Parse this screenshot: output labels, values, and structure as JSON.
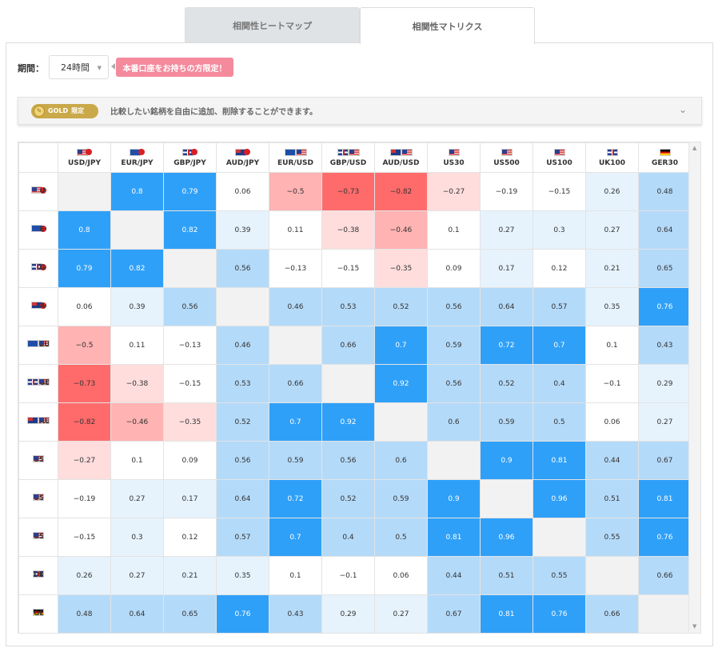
{
  "tabs": [
    {
      "label": "相関性ヒートマップ",
      "active": false
    },
    {
      "label": "相関性マトリクス",
      "active": true
    }
  ],
  "period": {
    "label": "期間：",
    "selected": "24時間"
  },
  "badge": {
    "text": "本番口座をお持ちの方限定！"
  },
  "gold": {
    "pill": "GOLD",
    "limited": "限定",
    "text": "比較したい銘柄を自由に追加、削除することができます。"
  },
  "symbols": [
    {
      "name": "USD/JPY",
      "flags": [
        "us",
        "jp"
      ]
    },
    {
      "name": "EUR/JPY",
      "flags": [
        "eu",
        "jp"
      ]
    },
    {
      "name": "GBP/JPY",
      "flags": [
        "gb",
        "jp"
      ]
    },
    {
      "name": "AUD/JPY",
      "flags": [
        "au",
        "jp"
      ]
    },
    {
      "name": "EUR/USD",
      "flags": [
        "eu",
        "us"
      ]
    },
    {
      "name": "GBP/USD",
      "flags": [
        "gb",
        "us"
      ]
    },
    {
      "name": "AUD/USD",
      "flags": [
        "au",
        "us"
      ]
    },
    {
      "name": "US30",
      "flags": [
        "us"
      ]
    },
    {
      "name": "US500",
      "flags": [
        "us"
      ]
    },
    {
      "name": "US100",
      "flags": [
        "us"
      ]
    },
    {
      "name": "UK100",
      "flags": [
        "gb"
      ]
    },
    {
      "name": "GER30",
      "flags": [
        "de"
      ]
    }
  ],
  "matrix": [
    [
      null,
      0.8,
      0.79,
      0.06,
      -0.5,
      -0.73,
      -0.82,
      -0.27,
      -0.19,
      -0.15,
      0.26,
      0.48
    ],
    [
      0.8,
      null,
      0.82,
      0.39,
      0.11,
      -0.38,
      -0.46,
      0.1,
      0.27,
      0.3,
      0.27,
      0.64
    ],
    [
      0.79,
      0.82,
      null,
      0.56,
      -0.13,
      -0.15,
      -0.35,
      0.09,
      0.17,
      0.12,
      0.21,
      0.65
    ],
    [
      0.06,
      0.39,
      0.56,
      null,
      0.46,
      0.53,
      0.52,
      0.56,
      0.64,
      0.57,
      0.35,
      0.76
    ],
    [
      -0.5,
      0.11,
      -0.13,
      0.46,
      null,
      0.66,
      0.7,
      0.59,
      0.72,
      0.7,
      0.1,
      0.43
    ],
    [
      -0.73,
      -0.38,
      -0.15,
      0.53,
      0.66,
      null,
      0.92,
      0.56,
      0.52,
      0.4,
      -0.1,
      0.29
    ],
    [
      -0.82,
      -0.46,
      -0.35,
      0.52,
      0.7,
      0.92,
      null,
      0.6,
      0.59,
      0.5,
      0.06,
      0.27
    ],
    [
      -0.27,
      0.1,
      0.09,
      0.56,
      0.59,
      0.56,
      0.6,
      null,
      0.9,
      0.81,
      0.44,
      0.67
    ],
    [
      -0.19,
      0.27,
      0.17,
      0.64,
      0.72,
      0.52,
      0.59,
      0.9,
      null,
      0.96,
      0.51,
      0.81
    ],
    [
      -0.15,
      0.3,
      0.12,
      0.57,
      0.7,
      0.4,
      0.5,
      0.81,
      0.96,
      null,
      0.55,
      0.76
    ],
    [
      0.26,
      0.27,
      0.21,
      0.35,
      0.1,
      -0.1,
      0.06,
      0.44,
      0.51,
      0.55,
      null,
      0.66
    ],
    [
      0.48,
      0.64,
      0.65,
      0.76,
      0.43,
      0.29,
      0.27,
      0.67,
      0.81,
      0.76,
      0.66,
      null
    ]
  ],
  "colors": {
    "strong_pos": "#2fa0f8",
    "mid_pos": "#b4daf9",
    "light_pos": "#e6f3fd",
    "neutral": "#ffffff",
    "light_neg": "#ffdddd",
    "mid_neg": "#ffb3b3",
    "strong_neg": "#ff6b6b",
    "diagonal": "#f2f2f2"
  }
}
